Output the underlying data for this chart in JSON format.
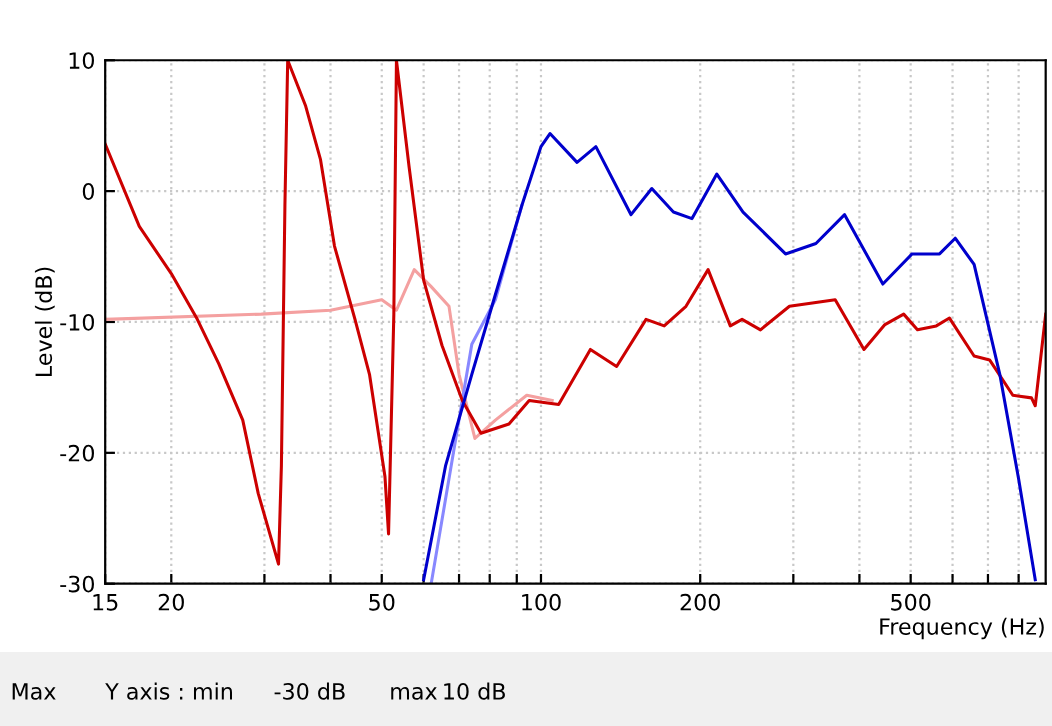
{
  "chart_data": {
    "type": "line",
    "xlabel": "Frequency (Hz)",
    "ylabel": "Level (dB)",
    "log": "x",
    "xlim": [
      15,
      900
    ],
    "ylim": [
      -30,
      10
    ],
    "xticks": [
      15,
      20,
      {
        "value": 30,
        "label": null
      },
      {
        "value": 40,
        "label": null
      },
      50,
      {
        "value": 60,
        "label": null
      },
      {
        "value": 70,
        "label": null
      },
      {
        "value": 80,
        "label": null
      },
      {
        "value": 90,
        "label": null
      },
      100,
      200,
      {
        "value": 300,
        "label": null
      },
      {
        "value": 400,
        "label": null
      },
      500,
      {
        "value": 600,
        "label": null
      },
      {
        "value": 700,
        "label": null
      },
      {
        "value": 800,
        "label": null
      }
    ],
    "yticks": [
      -30,
      -20,
      -10,
      0,
      10
    ],
    "grid": true,
    "legend": false,
    "marker": "none",
    "line_style": "solid",
    "annotations": [
      "Max",
      "Y axis : min",
      "-30 dB",
      "max",
      "10 dB"
    ],
    "series": [
      {
        "color": "#f4a0a0",
        "x": [
          15,
          29.6,
          40,
          50,
          53.3,
          57.6,
          62,
          67,
          70,
          75,
          82,
          94,
          105
        ],
        "values": [
          -9.8,
          -9.4,
          -9.1,
          -8.3,
          -9.1,
          -6,
          -7.3,
          -8.8,
          -14,
          -18.9,
          -17.5,
          -15.6,
          -16
        ]
      },
      {
        "color": "#8888ff",
        "x": [
          62,
          74,
          82,
          92
        ],
        "values": [
          -30,
          -11.7,
          -8.3,
          -1.1
        ]
      },
      {
        "color": "#cc0000",
        "x": [
          15,
          17.4,
          20,
          22.4,
          24.6,
          27.3,
          29.2,
          31.9,
          32.3,
          32.8,
          33.2,
          35.9,
          38.3,
          40.7,
          44.5,
          47.4,
          50.7,
          51.5,
          52.7,
          53.3,
          56.3,
          60,
          65,
          71,
          77,
          87,
          95,
          108,
          124,
          139,
          158,
          171,
          188,
          207,
          228,
          240,
          260,
          295,
          360,
          408,
          447,
          485,
          515,
          559,
          592,
          659,
          705,
          780,
          846,
          860,
          900
        ],
        "values": [
          3.6,
          -2.7,
          -6.3,
          -9.8,
          -13.2,
          -17.5,
          -23.1,
          -28.5,
          -21,
          -1.1,
          10,
          6.5,
          2.4,
          -4.2,
          -9.8,
          -14,
          -21.8,
          -26.2,
          -9.4,
          10,
          1.9,
          -6.8,
          -11.8,
          -16,
          -18.5,
          -17.8,
          -16,
          -16.3,
          -12.1,
          -13.4,
          -9.8,
          -10.3,
          -8.8,
          -6,
          -10.3,
          -9.8,
          -10.6,
          -8.8,
          -8.3,
          -12.1,
          -10.2,
          -9.4,
          -10.6,
          -10.3,
          -9.7,
          -12.6,
          -12.9,
          -15.6,
          -15.8,
          -16.4,
          -9.4
        ]
      },
      {
        "color": "#0000cc",
        "x": [
          60,
          66,
          74,
          82,
          92,
          100,
          104,
          117,
          127,
          148,
          162,
          178,
          193,
          215,
          241,
          290,
          331,
          375,
          443,
          503,
          567,
          607,
          659,
          737,
          800,
          860
        ],
        "values": [
          -29.7,
          -21,
          -14,
          -7.9,
          -1.1,
          3.4,
          4.4,
          2.2,
          3.4,
          -1.8,
          0.2,
          -1.6,
          -2.1,
          1.3,
          -1.6,
          -4.8,
          -4,
          -1.8,
          -7.1,
          -4.8,
          -4.8,
          -3.6,
          -5.6,
          -14,
          -22,
          -29.7
        ]
      }
    ]
  }
}
